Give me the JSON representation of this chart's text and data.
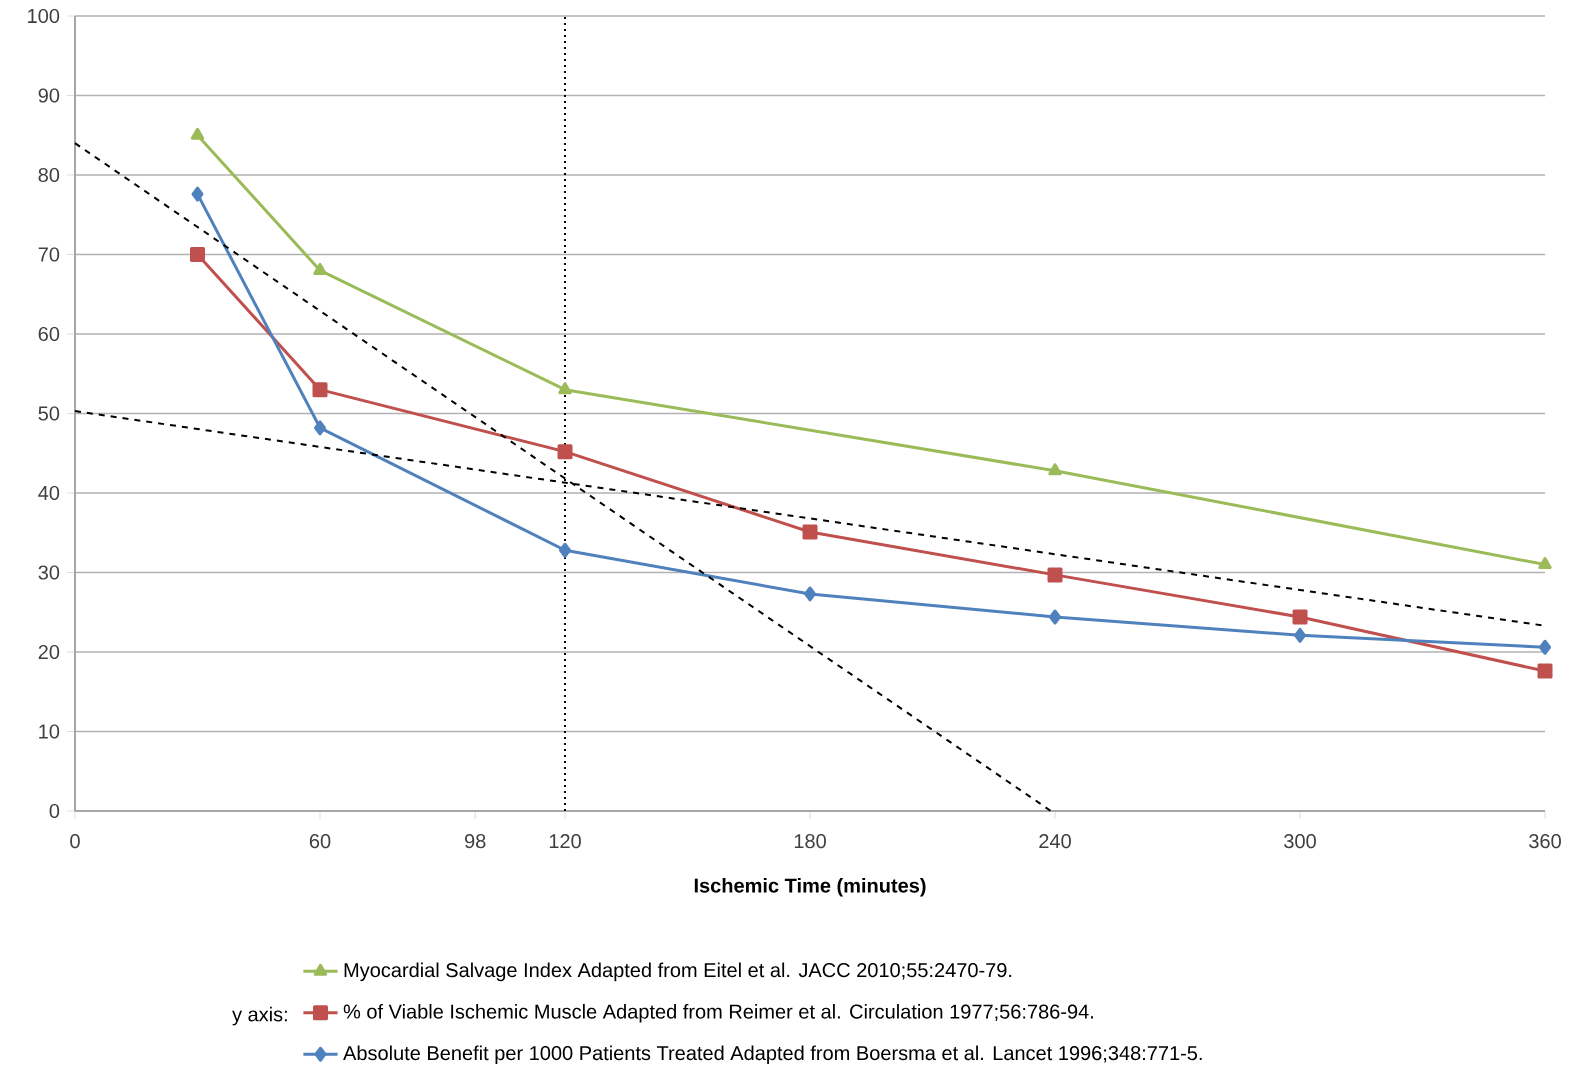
{
  "chart_data": {
    "type": "line",
    "xlabel": "Ischemic Time (minutes)",
    "annotations": [
      "y axis:"
    ],
    "xlim": [
      0,
      360
    ],
    "xticks": [
      0,
      60,
      98,
      120,
      180,
      240,
      300,
      360
    ],
    "ylim": [
      0,
      100
    ],
    "yticks": [
      0,
      10,
      20,
      30,
      40,
      50,
      60,
      70,
      80,
      90,
      100
    ],
    "grid": "y",
    "legend": "bottom",
    "line_style": "solid",
    "ref_lines": [
      {
        "axis": "x",
        "value": 120,
        "line_style": "dotted",
        "color": "#000000"
      }
    ],
    "series": [
      {
        "name": "Myocardial Salvage  Index Adapted from Eitel et al. JACC 2010;55:2470-79.",
        "color": "#9bbb59",
        "marker": "triangle",
        "x": [
          30,
          60,
          120,
          240,
          360
        ],
        "values": [
          85,
          68,
          53,
          42.8,
          31
        ]
      },
      {
        "name": "% of Viable Ischemic  Muscle Adapted from Reimer et al. Circulation 1977;56:786-94.",
        "color": "#c0504d",
        "marker": "square",
        "x": [
          30,
          60,
          120,
          180,
          240,
          300,
          360
        ],
        "values": [
          70,
          53,
          45.2,
          35.1,
          29.7,
          24.4,
          17.6
        ]
      },
      {
        "name": "Absolute Benefit per 1000 Patients Treated Adapted from Boersma et al. Lancet 1996;348:771-5.",
        "color": "#4f81bd",
        "marker": "diamond",
        "x": [
          30,
          60,
          120,
          180,
          240,
          300,
          360
        ],
        "values": [
          77.6,
          48.2,
          32.8,
          27.3,
          24.4,
          22.1,
          20.6
        ]
      },
      {
        "type": "line",
        "color": "#000000",
        "line_style": "dashed",
        "marker": "none",
        "x": [
          0,
          239
        ],
        "values": [
          84,
          0
        ]
      },
      {
        "type": "line",
        "color": "#000000",
        "line_style": "dashed",
        "marker": "none",
        "x": [
          0,
          360
        ],
        "values": [
          50.3,
          23.3
        ]
      }
    ]
  }
}
